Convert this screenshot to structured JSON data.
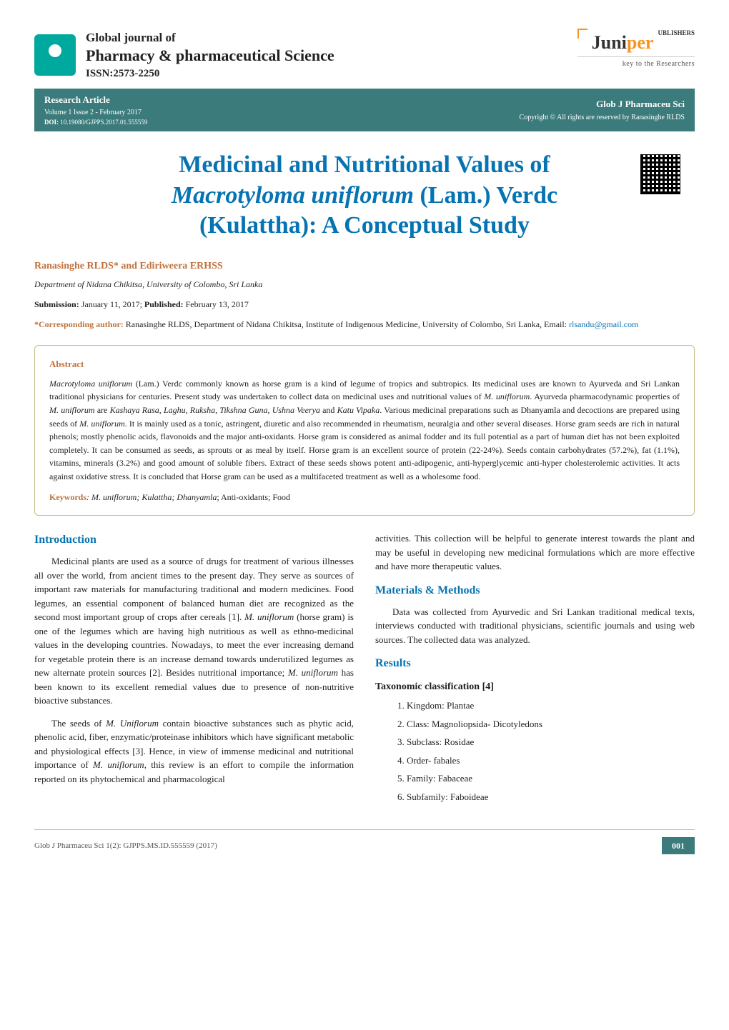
{
  "colors": {
    "brand_teal": "#00a99d",
    "bar_teal": "#3b7b7b",
    "heading_blue": "#0673b3",
    "accent_orange": "#c0713b",
    "publisher_orange": "#f7941e",
    "text": "#222222",
    "border_abstract": "#c9b98a",
    "background": "#ffffff"
  },
  "typography": {
    "body_family": "Georgia, serif",
    "body_size_pt": 10,
    "title_size_pt": 26,
    "h2_size_pt": 12,
    "abstract_size_pt": 9
  },
  "journal": {
    "line1": "Global journal of",
    "line2": "Pharmacy & pharmaceutical Science",
    "issn": "ISSN:2573-2250"
  },
  "publisher": {
    "name_a": "Juni",
    "name_b": "per",
    "suffix": "UBLISHERS",
    "tag": "key to the Researchers"
  },
  "meta": {
    "article_type": "Research Article",
    "volume": "Volume 1 Issue 2 - February 2017",
    "doi_label": "DOI:",
    "doi": "10.19080/GJPPS.2017.01.555559",
    "short": "Glob J Pharmaceu Sci",
    "copyright": "Copyright © All rights are reserved by Ranasinghe RLDS"
  },
  "title": {
    "l1": "Medicinal and Nutritional Values of",
    "l2_ital": "Macrotyloma uniflorum",
    "l2_rest": " (Lam.) Verdc",
    "l3": "(Kulattha): A Conceptual Study"
  },
  "authors": "Ranasinghe RLDS* and Ediriweera ERHSS",
  "affiliation": "Department of Nidana Chikitsa, University of Colombo, Sri Lanka",
  "dates": {
    "sub_label": "Submission:",
    "sub_val": " January 11, 2017; ",
    "pub_label": "Published:",
    "pub_val": " February 13, 2017"
  },
  "corresponding": {
    "label": "*Corresponding author:",
    "text": " Ranasinghe RLDS, Department of Nidana Chikitsa, Institute of Indigenous Medicine, University of Colombo, Sri Lanka, Email: ",
    "email": "rlsandu@gmail.com"
  },
  "abstract": {
    "head": "Abstract",
    "body_a": "Macrotyloma uniflorum",
    "body_b": " (Lam.) Verdc commonly known as horse gram is a kind of legume of tropics and subtropics. Its medicinal uses are known to Ayurveda and Sri Lankan traditional physicians for centuries. Present study was undertaken to collect data on medicinal uses and nutritional values of ",
    "body_c": "M. uniflorum",
    "body_d": ". Ayurveda pharmacodynamic properties of ",
    "body_e": "M. uniflorum",
    "body_f": " are ",
    "body_g": "Kashaya Rasa, Laghu, Ruksha, Tikshna Guna, Ushna Veerya",
    "body_h": " and ",
    "body_i": "Katu Vipaka",
    "body_j": ". Various medicinal preparations such as Dhanyamla and decoctions are prepared using seeds of ",
    "body_k": "M. uniflorum",
    "body_l": ". It is mainly used as a tonic, astringent, diuretic and also recommended in rheumatism, neuralgia and other several diseases. Horse gram seeds are rich in natural phenols; mostly phenolic acids, flavonoids and the major anti-oxidants. Horse gram is considered as animal fodder and its full potential as a part of human diet has not been exploited completely. It can be consumed as seeds, as sprouts or as meal by itself. Horse gram is an excellent source of protein (22-24%). Seeds contain carbohydrates (57.2%), fat (1.1%), vitamins, minerals (3.2%) and good amount of soluble fibers. Extract of these seeds shows potent anti-adipogenic, anti-hyperglycemic anti-hyper cholesterolemic activities. It acts against oxidative stress. It is concluded that Horse gram can be used as a multifaceted treatment as well as a wholesome food.",
    "kw_label": "Keywords",
    "kw_ital": ": M. uniflorum; Kulattha; Dhanyamla",
    "kw_rest": "; Anti-oxidants; Food"
  },
  "sections": {
    "intro_head": "Introduction",
    "intro_p1_a": "Medicinal plants are used as a source of drugs for treatment of various illnesses all over the world, from ancient times to the present day. They serve as sources of important raw materials for manufacturing traditional and modern medicines. Food legumes, an essential component of balanced human diet are recognized as the second most important group of crops after cereals [1]. ",
    "intro_p1_b": "M. uniflorum",
    "intro_p1_c": " (horse gram) is one of the legumes which are having high nutritious as well as ethno-medicinal values in the developing countries. Nowadays, to meet the ever increasing demand for vegetable protein there is an increase demand towards underutilized legumes as new alternate protein sources [2]. Besides nutritional importance; ",
    "intro_p1_d": "M. uniflorum",
    "intro_p1_e": " has been known to its excellent remedial values due to presence of non-nutritive bioactive substances.",
    "intro_p2_a": "The seeds of ",
    "intro_p2_b": "M. Uniflorum",
    "intro_p2_c": " contain bioactive substances such as phytic acid, phenolic acid, fiber, enzymatic/proteinase inhibitors which have significant metabolic and physiological effects [3]. Hence, in view of immense medicinal and nutritional importance of ",
    "intro_p2_d": "M. uniflorum",
    "intro_p2_e": ", this review is an effort to compile the information reported on its phytochemical and pharmacological",
    "col2_cont": "activities. This collection will be helpful to generate interest towards the plant and may be useful in developing new medicinal formulations which are more effective and have more therapeutic values.",
    "mm_head": "Materials & Methods",
    "mm_body": "Data was collected from Ayurvedic and Sri Lankan traditional medical texts, interviews conducted with traditional physicians, scientific journals and using web sources. The collected data was analyzed.",
    "res_head": "Results",
    "tax_head": "Taxonomic classification [4]",
    "tax": [
      "Kingdom: Plantae",
      "Class: Magnoliopsida- Dicotyledons",
      "Subclass: Rosidae",
      "Order- fabales",
      "Family: Fabaceae",
      "Subfamily: Faboideae"
    ]
  },
  "footer": {
    "cite": "Glob J Pharmaceu Sci 1(2): GJPPS.MS.ID.555559  (2017)",
    "page": "001"
  }
}
